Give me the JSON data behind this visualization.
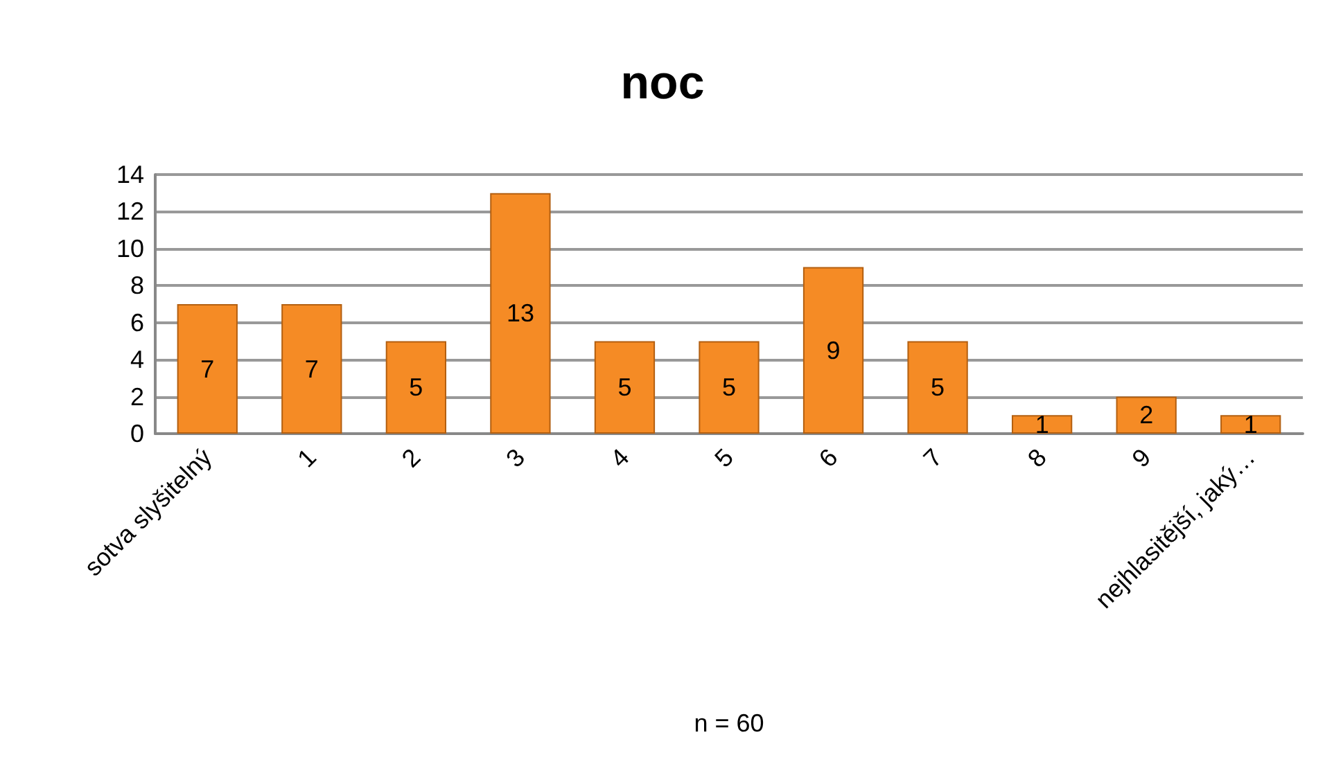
{
  "chart_data": {
    "type": "bar",
    "title": "noc",
    "xlabel": "n = 60",
    "categories": [
      "sotva slyšitelný",
      "1",
      "2",
      "3",
      "4",
      "5",
      "6",
      "7",
      "8",
      "9",
      "nejhlasitější, jaký…"
    ],
    "values": [
      7,
      7,
      5,
      13,
      5,
      5,
      9,
      5,
      1,
      2,
      1
    ],
    "color": "#f58b25",
    "ylim": [
      0,
      14
    ],
    "yticks": [
      0,
      2,
      4,
      6,
      8,
      10,
      12,
      14
    ],
    "grid": "y",
    "data_labels": true
  }
}
